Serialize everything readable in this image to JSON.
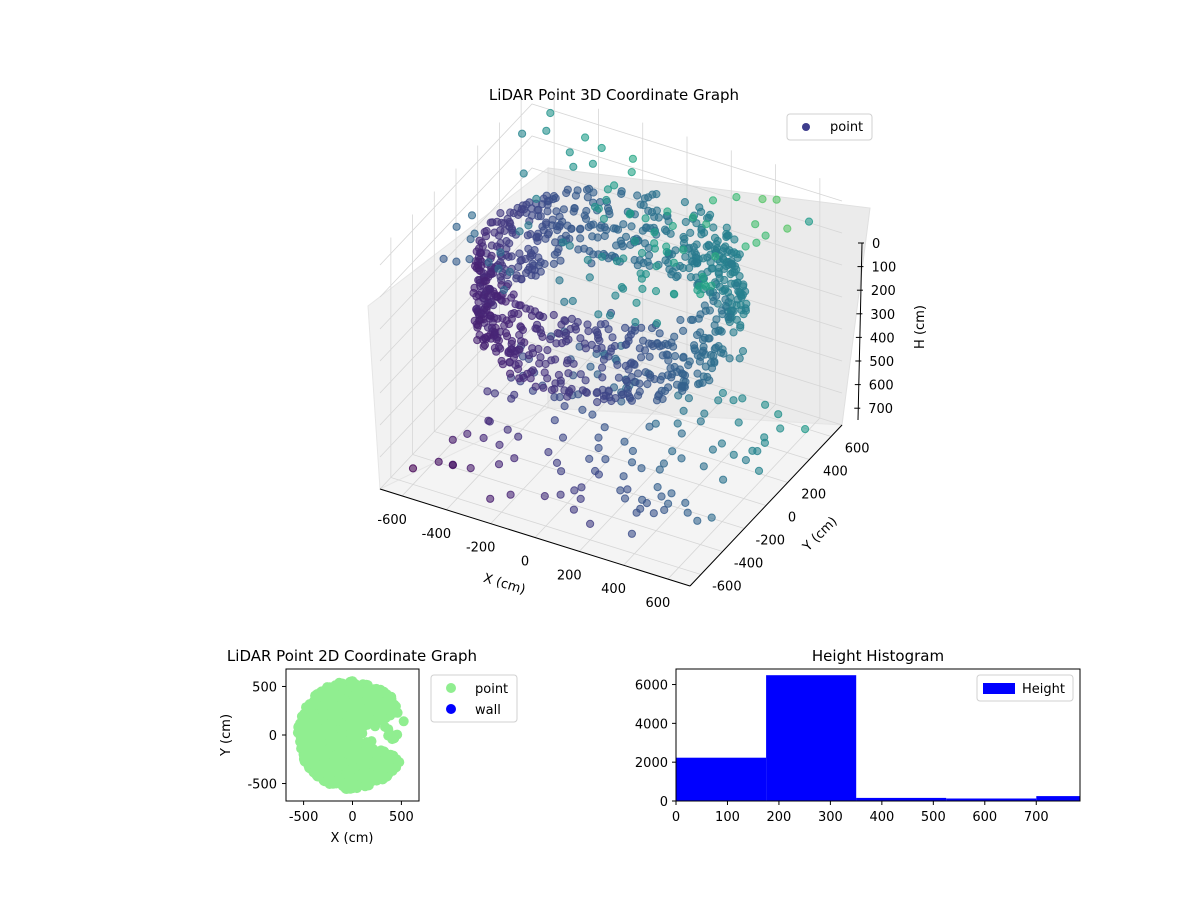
{
  "chart_data": [
    {
      "type": "scatter",
      "projection": "3d",
      "title": "LiDAR Point 3D Coordinate Graph",
      "xlabel": "X (cm)",
      "ylabel": "Y (cm)",
      "zlabel": "H (cm)",
      "xlim": [
        -700,
        700
      ],
      "ylim": [
        -700,
        700
      ],
      "zlim": [
        750,
        0
      ],
      "z_inverted": true,
      "xticks": [
        -600,
        -400,
        -200,
        0,
        200,
        400,
        600
      ],
      "yticks": [
        -600,
        -400,
        -200,
        0,
        200,
        400,
        600
      ],
      "zticks": [
        0,
        100,
        200,
        300,
        400,
        500,
        600,
        700
      ],
      "colormap": "viridis",
      "grid": true,
      "legend": {
        "placement": "top-right",
        "entries": [
          "point"
        ]
      },
      "series": [
        {
          "name": "point",
          "color": "#3e3d8d",
          "description_of_shape": "ring-shaped wall of points around origin at heights 100-350 cm, plus scattered points at floor and ceiling",
          "points_sample": [
            [
              -500,
              0,
              250
            ],
            [
              -450,
              250,
              250
            ],
            [
              -300,
              450,
              250
            ],
            [
              0,
              550,
              250
            ],
            [
              300,
              450,
              250
            ],
            [
              450,
              250,
              250
            ],
            [
              500,
              0,
              250
            ],
            [
              450,
              -250,
              250
            ],
            [
              300,
              -450,
              250
            ],
            [
              0,
              -550,
              250
            ],
            [
              -300,
              -450,
              250
            ],
            [
              -450,
              -250,
              250
            ],
            [
              -500,
              0,
              150
            ],
            [
              -300,
              450,
              150
            ],
            [
              300,
              450,
              150
            ],
            [
              300,
              -450,
              150
            ],
            [
              -300,
              -450,
              150
            ],
            [
              0,
              0,
              300
            ],
            [
              600,
              600,
              100
            ],
            [
              600,
              400,
              50
            ],
            [
              -600,
              -600,
              700
            ],
            [
              200,
              -600,
              700
            ],
            [
              600,
              200,
              0
            ]
          ]
        }
      ]
    },
    {
      "type": "scatter",
      "title": "LiDAR Point 2D Coordinate Graph",
      "xlabel": "X (cm)",
      "ylabel": "Y (cm)",
      "xlim": [
        -680,
        680
      ],
      "ylim": [
        -680,
        680
      ],
      "xticks": [
        -500,
        0,
        500
      ],
      "yticks": [
        -500,
        0,
        500
      ],
      "legend": {
        "placement": "right-outside",
        "entries": [
          "point",
          "wall"
        ]
      },
      "series": [
        {
          "name": "point",
          "color": "#90ee90",
          "description_of_shape": "dense filled disk of radius ~550 cm with a wedge-shaped opening toward +X"
        },
        {
          "name": "wall",
          "color": "#0000ff",
          "points": []
        }
      ]
    },
    {
      "type": "bar",
      "subtype": "histogram",
      "title": "Height Histogram",
      "xlabel": "",
      "ylabel": "",
      "xlim": [
        0,
        785
      ],
      "ylim": [
        0,
        6800
      ],
      "xticks": [
        0,
        100,
        200,
        300,
        400,
        500,
        600,
        700
      ],
      "yticks": [
        0,
        2000,
        4000,
        6000
      ],
      "legend": {
        "placement": "top-right",
        "entries": [
          "Height"
        ]
      },
      "series": [
        {
          "name": "Height",
          "color": "#0000ff",
          "bins": [
            {
              "from": 0,
              "to": 175,
              "count": 2230
            },
            {
              "from": 175,
              "to": 350,
              "count": 6480
            },
            {
              "from": 350,
              "to": 525,
              "count": 160
            },
            {
              "from": 525,
              "to": 700,
              "count": 130
            },
            {
              "from": 700,
              "to": 785,
              "count": 250
            }
          ]
        }
      ]
    }
  ]
}
